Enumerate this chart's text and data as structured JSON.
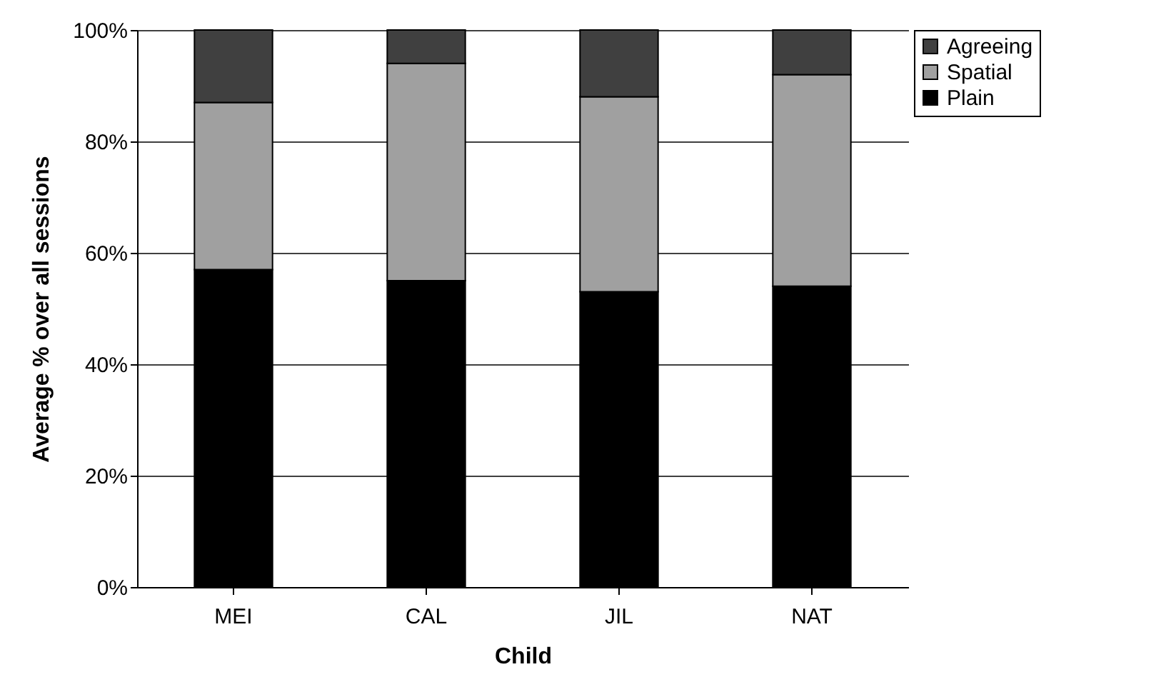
{
  "chart_data": {
    "type": "bar",
    "stacked": true,
    "xlabel": "Child",
    "ylabel": "Average % over all sessions",
    "categories": [
      "MEI",
      "CAL",
      "JIL",
      "NAT"
    ],
    "series": [
      {
        "name": "Plain",
        "color": "#000000",
        "values": [
          57,
          55,
          53,
          54
        ]
      },
      {
        "name": "Spatial",
        "color": "#a0a0a0",
        "values": [
          30,
          39,
          35,
          38
        ]
      },
      {
        "name": "Agreeing",
        "color": "#404040",
        "values": [
          13,
          6,
          12,
          8
        ]
      }
    ],
    "ylim": [
      0,
      100
    ],
    "yticks": [
      {
        "value": 0,
        "label": "0%"
      },
      {
        "value": 20,
        "label": "20%"
      },
      {
        "value": 40,
        "label": "40%"
      },
      {
        "value": 60,
        "label": "60%"
      },
      {
        "value": 80,
        "label": "80%"
      },
      {
        "value": 100,
        "label": "100%"
      }
    ],
    "grid": "y",
    "legend": "right"
  }
}
